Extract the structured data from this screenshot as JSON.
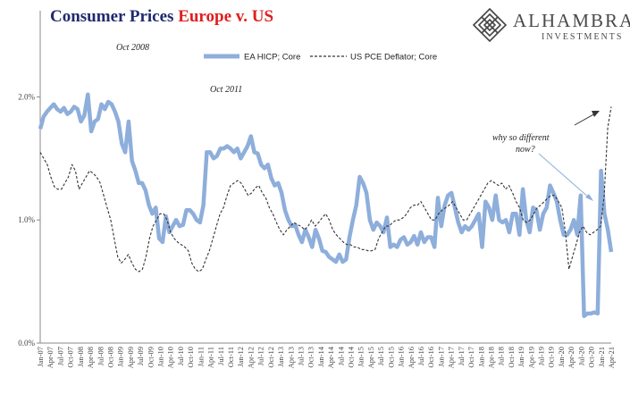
{
  "header": {
    "title_part1": "Consumer Prices",
    "title_part2": "Europe v. US",
    "brand_name": "ALHAMBRA",
    "brand_sub": "INVESTMENTS"
  },
  "colors": {
    "title": "#1f2a6e",
    "title_accent": "#e01e1e",
    "ea_series": "#8eaedb",
    "us_series": "#333333"
  },
  "chart_data": {
    "type": "line",
    "title": "Consumer Prices Europe v. US",
    "xlabel": "",
    "ylabel": "",
    "ylim": [
      0,
      2.7
    ],
    "yticks": [
      {
        "value": 0,
        "label": "0.0%"
      },
      {
        "value": 1,
        "label": "1.0%"
      },
      {
        "value": 2,
        "label": "2.0%"
      }
    ],
    "grid": false,
    "legend_position": "top-center",
    "x_labels": [
      "Jan-07",
      "Apr-07",
      "Jul-07",
      "Oct-07",
      "Jan-08",
      "Apr-08",
      "Jul-08",
      "Oct-08",
      "Jan-09",
      "Apr-09",
      "Jul-09",
      "Oct-09",
      "Jan-10",
      "Apr-10",
      "Jul-10",
      "Oct-10",
      "Jan-11",
      "Apr-11",
      "Jul-11",
      "Oct-11",
      "Jan-12",
      "Apr-12",
      "Jul-12",
      "Oct-12",
      "Jan-13",
      "Apr-13",
      "Jul-13",
      "Oct-13",
      "Jan-14",
      "Apr-14",
      "Jul-14",
      "Oct-14",
      "Jan-15",
      "Apr-15",
      "Jul-15",
      "Oct-15",
      "Jan-16",
      "Apr-16",
      "Jul-16",
      "Oct-16",
      "Jan-17",
      "Apr-17",
      "Jul-17",
      "Oct-17",
      "Jan-18",
      "Apr-18",
      "Jul-18",
      "Oct-18",
      "Jan-19",
      "Apr-19",
      "Jul-19",
      "Oct-19",
      "Jan-20",
      "Apr-20",
      "Jul-20",
      "Oct-20",
      "Jan-21",
      "Apr-21"
    ],
    "series": [
      {
        "name": "EA HICP; Core",
        "style": "solid-thick",
        "values": [
          1.74,
          1.84,
          1.88,
          1.91,
          1.94,
          1.9,
          1.88,
          1.91,
          1.86,
          1.88,
          1.92,
          1.9,
          1.8,
          1.85,
          2.02,
          1.72,
          1.8,
          1.82,
          1.94,
          1.9,
          1.96,
          1.94,
          1.88,
          1.8,
          1.62,
          1.55,
          1.8,
          1.48,
          1.4,
          1.3,
          1.3,
          1.24,
          1.12,
          1.05,
          1.1,
          0.85,
          0.82,
          1.03,
          0.9,
          0.95,
          1.0,
          0.95,
          0.96,
          1.08,
          1.08,
          1.05,
          1.0,
          0.98,
          1.12,
          1.55,
          1.55,
          1.5,
          1.52,
          1.58,
          1.58,
          1.6,
          1.58,
          1.55,
          1.58,
          1.5,
          1.55,
          1.6,
          1.68,
          1.55,
          1.54,
          1.45,
          1.42,
          1.45,
          1.34,
          1.28,
          1.3,
          1.22,
          1.08,
          1.0,
          0.95,
          0.96,
          0.88,
          0.82,
          0.92,
          0.86,
          0.78,
          0.92,
          0.85,
          0.75,
          0.74,
          0.7,
          0.68,
          0.66,
          0.72,
          0.66,
          0.68,
          0.86,
          1.0,
          1.12,
          1.35,
          1.3,
          1.22,
          1.0,
          0.92,
          0.98,
          0.95,
          0.9,
          1.02,
          0.78,
          0.8,
          0.78,
          0.84,
          0.86,
          0.8,
          0.82,
          0.87,
          0.8,
          0.9,
          0.82,
          0.86,
          0.86,
          0.78,
          1.18,
          0.95,
          1.12,
          1.2,
          1.22,
          1.1,
          0.98,
          0.9,
          0.95,
          0.92,
          0.95,
          1.0,
          1.05,
          0.78,
          1.15,
          1.1,
          1.0,
          1.2,
          1.0,
          0.98,
          1.0,
          0.9,
          1.05,
          1.05,
          0.88,
          1.25,
          1.0,
          0.9,
          1.1,
          1.08,
          0.92,
          1.05,
          1.1,
          1.28,
          1.22,
          1.15,
          1.0,
          0.88,
          0.88,
          0.92,
          1.0,
          0.88,
          1.2,
          0.22,
          0.24,
          0.24,
          0.25,
          0.24,
          1.4,
          1.05,
          0.92,
          0.74
        ]
      },
      {
        "name": "US PCE Deflator; Core",
        "style": "dashed",
        "values": [
          1.55,
          1.5,
          1.45,
          1.35,
          1.27,
          1.25,
          1.25,
          1.3,
          1.35,
          1.45,
          1.4,
          1.25,
          1.3,
          1.35,
          1.4,
          1.38,
          1.35,
          1.3,
          1.2,
          1.1,
          1.0,
          0.85,
          0.7,
          0.65,
          0.68,
          0.72,
          0.65,
          0.6,
          0.58,
          0.6,
          0.7,
          0.85,
          0.95,
          1.0,
          1.05,
          1.05,
          1.0,
          0.9,
          0.85,
          0.82,
          0.8,
          0.78,
          0.75,
          0.65,
          0.6,
          0.58,
          0.6,
          0.68,
          0.75,
          0.85,
          0.95,
          1.05,
          1.1,
          1.2,
          1.28,
          1.3,
          1.32,
          1.3,
          1.25,
          1.2,
          1.22,
          1.26,
          1.28,
          1.22,
          1.18,
          1.1,
          1.05,
          0.98,
          0.92,
          0.88,
          0.92,
          0.95,
          0.98,
          0.96,
          0.95,
          0.92,
          0.95,
          1.0,
          0.95,
          0.98,
          1.02,
          1.05,
          1.0,
          0.92,
          0.88,
          0.85,
          0.82,
          0.8,
          0.8,
          0.78,
          0.78,
          0.76,
          0.76,
          0.75,
          0.75,
          0.76,
          0.85,
          0.9,
          0.95,
          0.95,
          0.98,
          1.0,
          1.0,
          1.02,
          1.05,
          1.1,
          1.12,
          1.12,
          1.15,
          1.1,
          1.05,
          1.0,
          1.0,
          1.05,
          1.08,
          1.1,
          1.12,
          1.15,
          1.1,
          1.05,
          1.0,
          1.0,
          1.05,
          1.1,
          1.15,
          1.2,
          1.25,
          1.3,
          1.32,
          1.3,
          1.28,
          1.3,
          1.25,
          1.28,
          1.22,
          1.15,
          1.1,
          1.0,
          0.98,
          1.0,
          1.05,
          1.1,
          1.12,
          1.15,
          1.18,
          1.2,
          1.2,
          1.15,
          1.1,
          0.9,
          0.6,
          0.7,
          0.8,
          0.9,
          0.95,
          0.9,
          0.88,
          0.9,
          0.92,
          0.95,
          1.2,
          1.75,
          1.92
        ]
      }
    ],
    "annotations": [
      {
        "text": "Oct 2008",
        "x_label": "Oct-08"
      },
      {
        "text": "Oct 2011",
        "x_label": "Oct-11"
      },
      {
        "text": "why so different",
        "x_label": "Oct-19"
      },
      {
        "text": "now?",
        "x_label": "Oct-19"
      }
    ]
  }
}
